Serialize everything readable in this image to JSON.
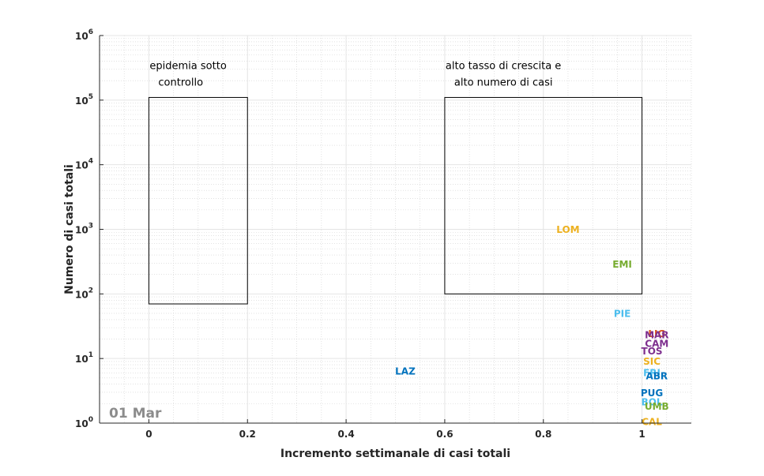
{
  "chart_data": {
    "type": "scatter",
    "title": "",
    "xlabel": "Incremento settimanale di casi totali",
    "ylabel": "Numero di casi totali",
    "xlim": [
      -0.1,
      1.1
    ],
    "ylim": [
      1,
      1000000
    ],
    "yscale": "log",
    "grid": true,
    "minor_grid": true,
    "x_ticks": [
      0,
      0.2,
      0.4,
      0.6,
      0.8,
      1
    ],
    "x_tick_labels": [
      "0",
      "0.2",
      "0.4",
      "0.6",
      "0.8",
      "1"
    ],
    "y_ticks": [
      1,
      10,
      100,
      1000,
      10000,
      100000,
      1000000
    ],
    "y_tick_labels": [
      {
        "base": "10",
        "exp": "0"
      },
      {
        "base": "10",
        "exp": "1"
      },
      {
        "base": "10",
        "exp": "2"
      },
      {
        "base": "10",
        "exp": "3"
      },
      {
        "base": "10",
        "exp": "4"
      },
      {
        "base": "10",
        "exp": "5"
      },
      {
        "base": "10",
        "exp": "6"
      }
    ],
    "date_label": "01 Mar",
    "regions": [
      {
        "x": [
          0,
          0.2
        ],
        "y": [
          70,
          110000
        ],
        "label_lines": [
          "epidemia sotto",
          "controllo"
        ]
      },
      {
        "x": [
          0.6,
          1.0
        ],
        "y": [
          100,
          110000
        ],
        "label_lines": [
          "alto tasso di crescita e",
          "alto numero di casi"
        ]
      }
    ],
    "points": [
      {
        "label": "LOM",
        "x": 0.85,
        "y": 984,
        "color": "#EDB120"
      },
      {
        "label": "EMI",
        "x": 0.96,
        "y": 285,
        "color": "#77AC30"
      },
      {
        "label": "PIE",
        "x": 0.96,
        "y": 49,
        "color": "#4DBEEE"
      },
      {
        "label": "LAZ",
        "x": 0.52,
        "y": 6.3,
        "color": "#0072BD"
      },
      {
        "label": "LIG",
        "x": 1.03,
        "y": 24,
        "color": "#D95319"
      },
      {
        "label": "MAR",
        "x": 1.03,
        "y": 23,
        "color": "#7E2F8E"
      },
      {
        "label": "CAM",
        "x": 1.03,
        "y": 17,
        "color": "#7E2F8E"
      },
      {
        "label": "TOS",
        "x": 1.02,
        "y": 13,
        "color": "#7E2F8E"
      },
      {
        "label": "SIC",
        "x": 1.02,
        "y": 9,
        "color": "#EDB120"
      },
      {
        "label": "FRI",
        "x": 1.02,
        "y": 6,
        "color": "#4DBEEE"
      },
      {
        "label": "ABR",
        "x": 1.03,
        "y": 5.3,
        "color": "#0072BD"
      },
      {
        "label": "PUG",
        "x": 1.02,
        "y": 2.9,
        "color": "#0072BD"
      },
      {
        "label": "BOL",
        "x": 1.02,
        "y": 2.1,
        "color": "#4DBEEE"
      },
      {
        "label": "UMB",
        "x": 1.03,
        "y": 1.8,
        "color": "#77AC30"
      },
      {
        "label": "CAL",
        "x": 1.02,
        "y": 1.05,
        "color": "#EDB120"
      }
    ]
  }
}
